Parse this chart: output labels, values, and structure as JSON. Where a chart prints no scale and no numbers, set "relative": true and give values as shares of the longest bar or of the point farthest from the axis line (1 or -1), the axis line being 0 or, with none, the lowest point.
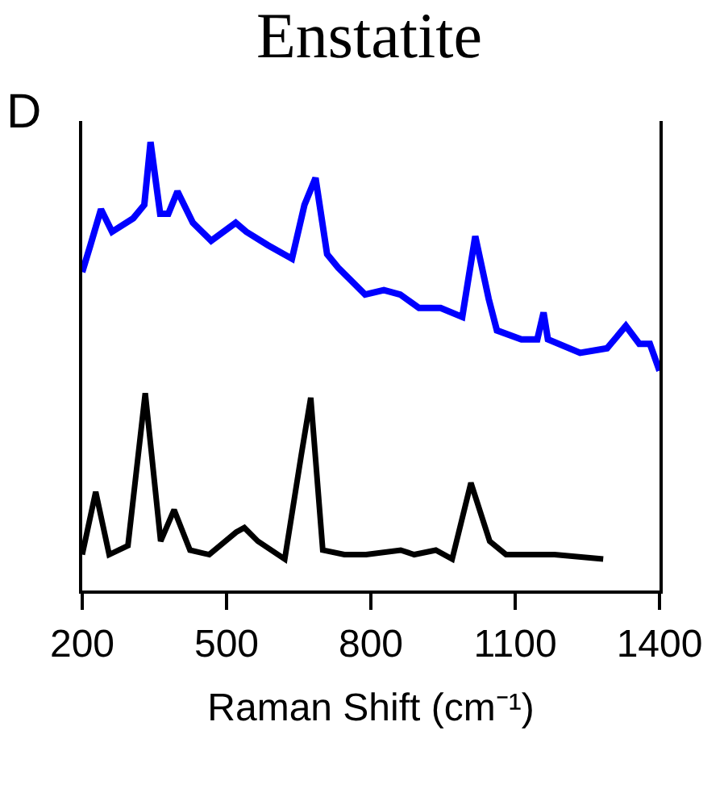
{
  "chart_data": {
    "type": "line",
    "title": "Enstatite",
    "xlabel": "Raman Shift (cm⁻¹)",
    "annotations": [
      "D"
    ],
    "relative": true,
    "xlim": [
      200,
      1400
    ],
    "xticks": [
      200,
      500,
      800,
      1100,
      1400
    ],
    "marker": "none",
    "line_style": "solid",
    "series": [
      {
        "color": "#0000ff",
        "x": [
          200,
          217,
          239,
          262,
          306,
          329,
          342,
          362,
          379,
          398,
          430,
          468,
          519,
          541,
          586,
          636,
          662,
          685,
          709,
          732,
          788,
          827,
          861,
          900,
          945,
          990,
          1017,
          1045,
          1062,
          1113,
          1146,
          1159,
          1168,
          1235,
          1291,
          1330,
          1358,
          1380,
          1400
        ],
        "values": [
          0.71,
          0.77,
          0.85,
          0.8,
          0.83,
          0.86,
          1.0,
          0.84,
          0.84,
          0.89,
          0.82,
          0.78,
          0.82,
          0.8,
          0.77,
          0.74,
          0.86,
          0.92,
          0.75,
          0.72,
          0.66,
          0.67,
          0.66,
          0.63,
          0.63,
          0.61,
          0.79,
          0.65,
          0.58,
          0.56,
          0.56,
          0.62,
          0.56,
          0.53,
          0.54,
          0.59,
          0.55,
          0.55,
          0.49
        ]
      },
      {
        "color": "#000000",
        "x": [
          200,
          228,
          256,
          295,
          331,
          363,
          391,
          424,
          464,
          520,
          537,
          565,
          621,
          655,
          675,
          700,
          745,
          790,
          862,
          890,
          935,
          969,
          1008,
          1047,
          1081,
          1182,
          1283
        ],
        "values": [
          0.08,
          0.22,
          0.08,
          0.1,
          0.44,
          0.11,
          0.18,
          0.09,
          0.08,
          0.13,
          0.14,
          0.11,
          0.07,
          0.3,
          0.43,
          0.09,
          0.08,
          0.08,
          0.09,
          0.08,
          0.09,
          0.07,
          0.24,
          0.11,
          0.08,
          0.08,
          0.07
        ]
      }
    ]
  }
}
